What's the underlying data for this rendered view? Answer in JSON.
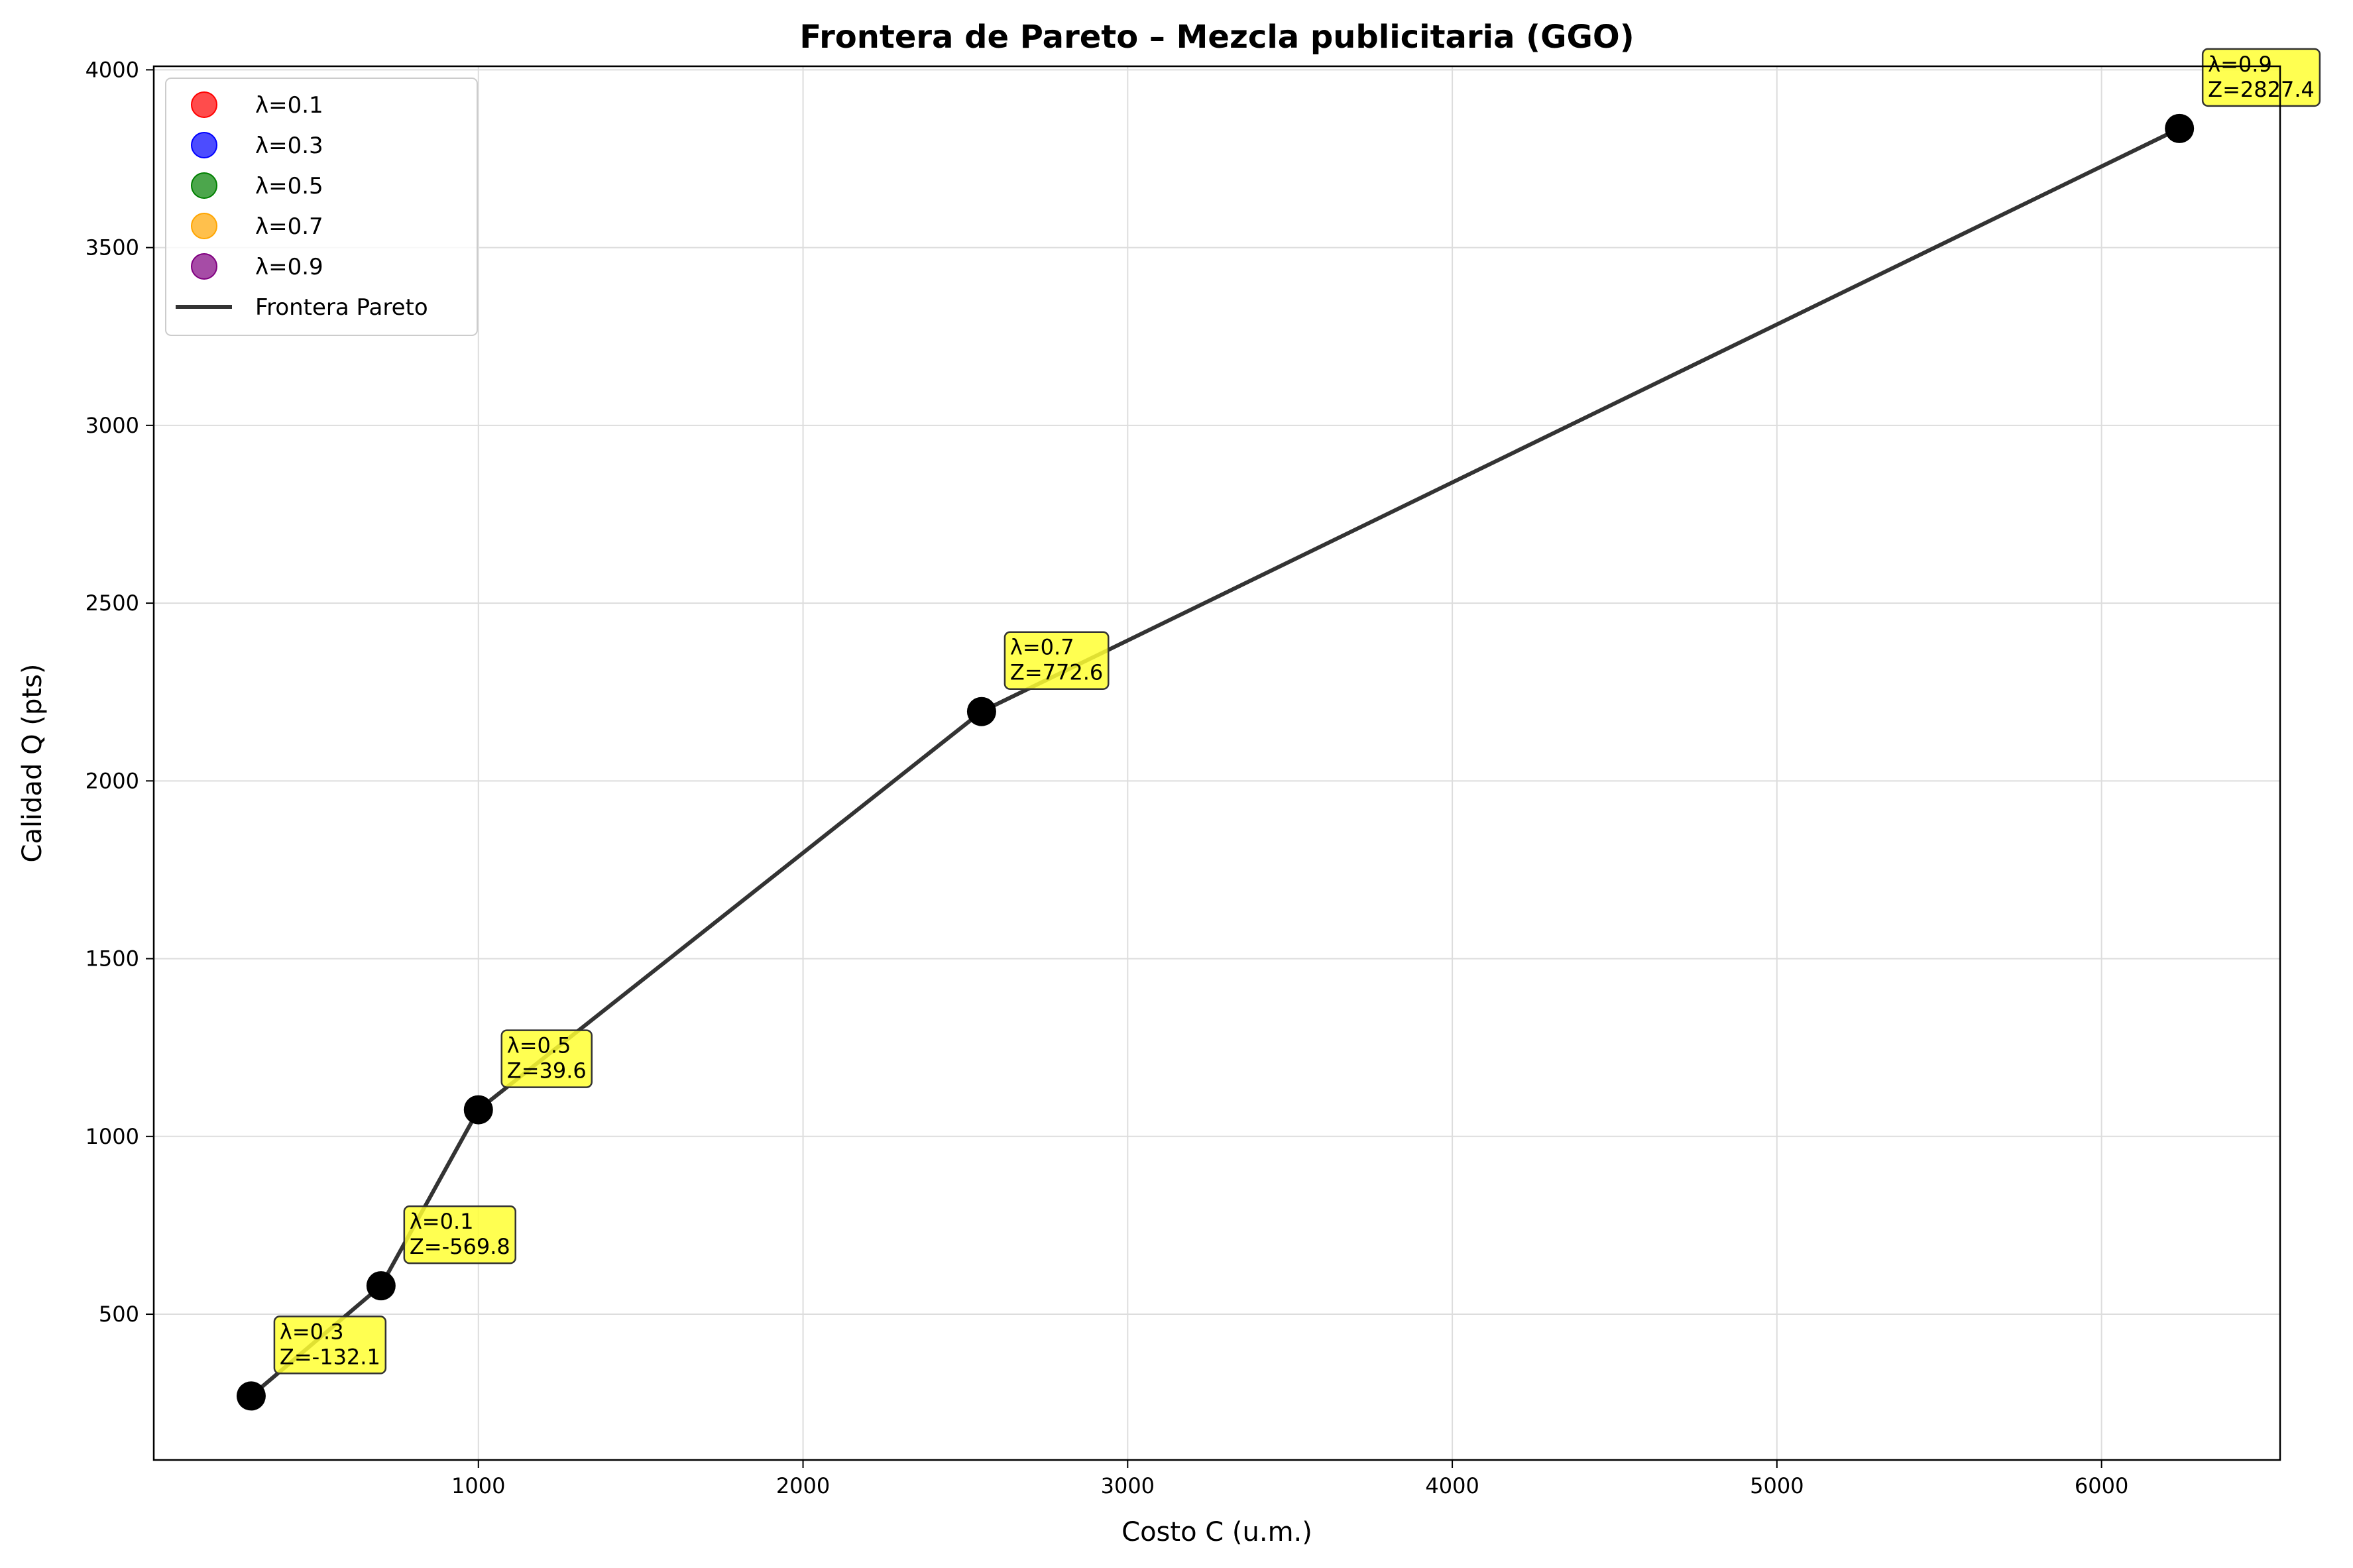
{
  "chart_data": {
    "type": "line",
    "title": "Frontera de Pareto – Mezcla publicitaria (GGO)",
    "xlabel": "Costo C (u.m.)",
    "ylabel": "Calidad Q (pts)",
    "xlim": [
      0,
      6550
    ],
    "ylim": [
      90,
      4010
    ],
    "xticks": [
      1000,
      2000,
      3000,
      4000,
      5000,
      6000
    ],
    "yticks": [
      500,
      1000,
      1500,
      2000,
      2500,
      3000,
      3500,
      4000
    ],
    "grid": true,
    "legend_position": "top-left",
    "points": [
      {
        "lambda": "λ=0.3",
        "x": 300,
        "y": 270,
        "z_label": "Z=-132.1",
        "color": "#0000ff"
      },
      {
        "lambda": "λ=0.1",
        "x": 700,
        "y": 580,
        "z_label": "Z=-569.8",
        "color": "#ff0000"
      },
      {
        "lambda": "λ=0.5",
        "x": 1000,
        "y": 1075,
        "z_label": "Z=39.6",
        "color": "#008000"
      },
      {
        "lambda": "λ=0.7",
        "x": 2550,
        "y": 2195,
        "z_label": "Z=772.6",
        "color": "#ffa500"
      },
      {
        "lambda": "λ=0.9",
        "x": 6240,
        "y": 3835,
        "z_label": "Z=2827.4",
        "color": "#800080"
      }
    ],
    "line_series": {
      "name": "Frontera Pareto",
      "color": "#333333"
    },
    "legend": [
      {
        "label": "λ=0.1",
        "color": "#ff0000"
      },
      {
        "label": "λ=0.3",
        "color": "#0000ff"
      },
      {
        "label": "λ=0.5",
        "color": "#008000"
      },
      {
        "label": "λ=0.7",
        "color": "#ffa500"
      },
      {
        "label": "λ=0.9",
        "color": "#800080"
      }
    ],
    "annotation_box_color": "#ffff33"
  }
}
